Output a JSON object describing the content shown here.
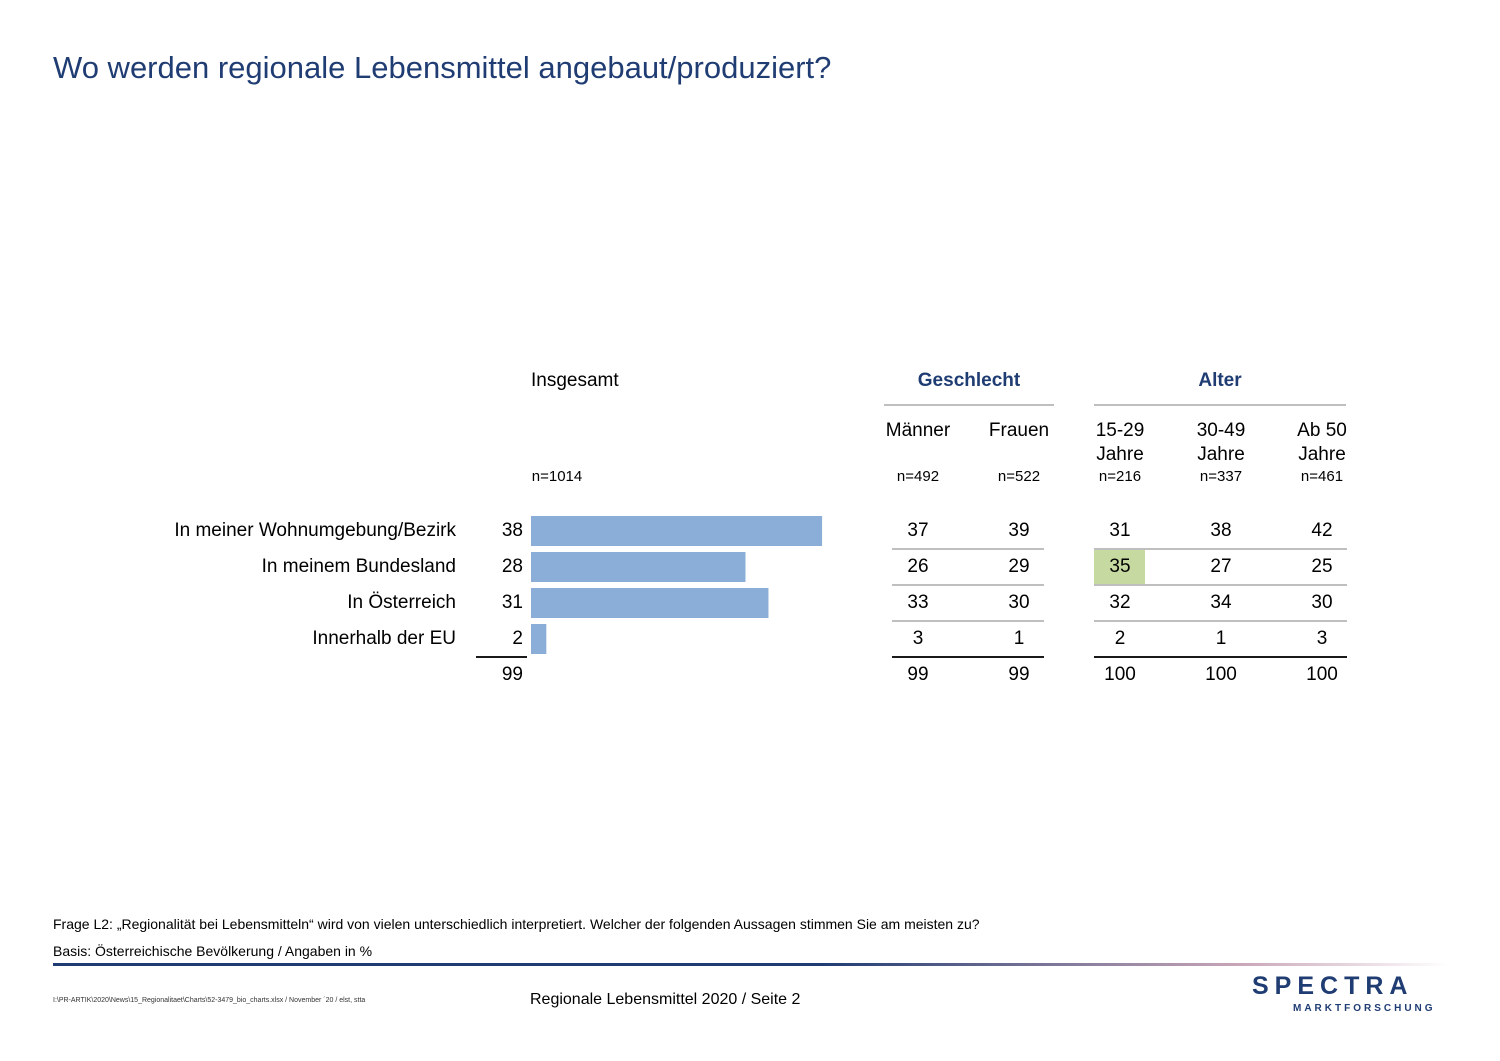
{
  "title": "Wo werden regionale Lebensmittel angebaut/produziert?",
  "header": {
    "total_label": "Insgesamt",
    "total_n": "n=1014",
    "groups": [
      {
        "label": "Geschlecht"
      },
      {
        "label": "Alter"
      }
    ],
    "subgroups": [
      {
        "line1": "Männer",
        "line2": "",
        "n": "n=492"
      },
      {
        "line1": "Frauen",
        "line2": "",
        "n": "n=522"
      },
      {
        "line1": "15-29",
        "line2": "Jahre",
        "n": "n=216"
      },
      {
        "line1": "30-49",
        "line2": "Jahre",
        "n": "n=337"
      },
      {
        "line1": "Ab 50",
        "line2": "Jahre",
        "n": "n=461"
      }
    ]
  },
  "chart_data": {
    "type": "bar",
    "orientation": "horizontal",
    "categories": [
      "In meiner Wohnumgebung/Bezirk",
      "In meinem Bundesland",
      "In Österreich",
      "Innerhalb der EU"
    ],
    "values": [
      38,
      28,
      31,
      2
    ],
    "total": 99,
    "bar_color": "#8aaed8"
  },
  "table": {
    "columns": [
      "Männer",
      "Frauen",
      "15-29 Jahre",
      "30-49 Jahre",
      "Ab 50 Jahre"
    ],
    "rows": [
      [
        "37",
        "39",
        "31",
        "38",
        "42"
      ],
      [
        "26",
        "29",
        "35",
        "27",
        "25"
      ],
      [
        "33",
        "30",
        "32",
        "34",
        "30"
      ],
      [
        "3",
        "1",
        "2",
        "1",
        "3"
      ]
    ],
    "totals": [
      "99",
      "99",
      "100",
      "100",
      "100"
    ],
    "highlight": {
      "row": 1,
      "col": 2,
      "color": "#c5d9a0"
    }
  },
  "footnotes": {
    "question": "Frage L2: „Regionalität bei Lebensmitteln“ wird von vielen unterschiedlich interpretiert. Welcher der folgenden Aussagen stimmen Sie am meisten zu?",
    "basis": "Basis: Österreichische Bevölkerung / Angaben in %"
  },
  "footer": {
    "path": "I:\\PR-ARTIK\\2020\\News\\15_Regionalitaet\\Charts\\52-3479_bio_charts.xlsx / November ´20 / elst, stta",
    "page": "Regionale Lebensmittel 2020  /  Seite  2",
    "logo_main": "SPECTRA",
    "logo_sub": "MARKTFORSCHUNG"
  },
  "colors": {
    "title": "#1f3c73",
    "accent": "#1f3c73",
    "highlight": "#c5d9a0"
  }
}
